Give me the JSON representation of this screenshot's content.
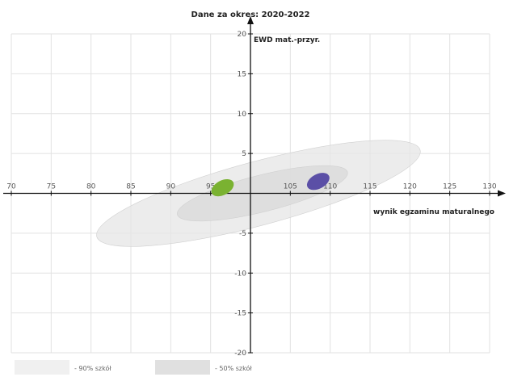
{
  "chart_data": {
    "type": "scatter",
    "title": "Dane za okres: 2020-2022",
    "xlabel": "wynik egzaminu maturalnego",
    "ylabel": "EWD mat.-przyr.",
    "xlim": [
      70,
      130
    ],
    "ylim": [
      -20,
      20
    ],
    "x_ticks": [
      70,
      75,
      80,
      85,
      90,
      95,
      105,
      110,
      115,
      120,
      125,
      130
    ],
    "y_ticks": [
      20,
      15,
      10,
      5,
      -5,
      -10,
      -15,
      -20
    ],
    "x_tick_labels": [
      "70",
      "75",
      "80",
      "85",
      "90",
      "95",
      "105",
      "110",
      "115",
      "120",
      "125",
      "130"
    ],
    "y_tick_labels": [
      "20",
      "15",
      "10",
      "5",
      "-5",
      "-10",
      "-15",
      "-20"
    ],
    "grid": true,
    "regions": [
      {
        "label": "- 90% szkół",
        "cx": 101,
        "cy": 0,
        "x_half_width": 21,
        "y_half_width": 4,
        "angle_deg": 15,
        "color": "#e6e6e6"
      },
      {
        "label": "- 50% szkół",
        "cx": 101.5,
        "cy": 0,
        "x_half_width": 11,
        "y_half_width": 2.3,
        "angle_deg": 14,
        "color": "#d9d9d9"
      }
    ],
    "points": [
      {
        "x": 96.5,
        "y": 0.7,
        "color": "#7ab231"
      },
      {
        "x": 108.5,
        "y": 1.5,
        "color": "#5b4fa6"
      }
    ],
    "legend": [
      {
        "label": "- 90% szkół",
        "color": "#f0f0f0"
      },
      {
        "label": "- 50% szkół",
        "color": "#e0e0e0"
      }
    ],
    "legend_position": "bottom-left"
  }
}
